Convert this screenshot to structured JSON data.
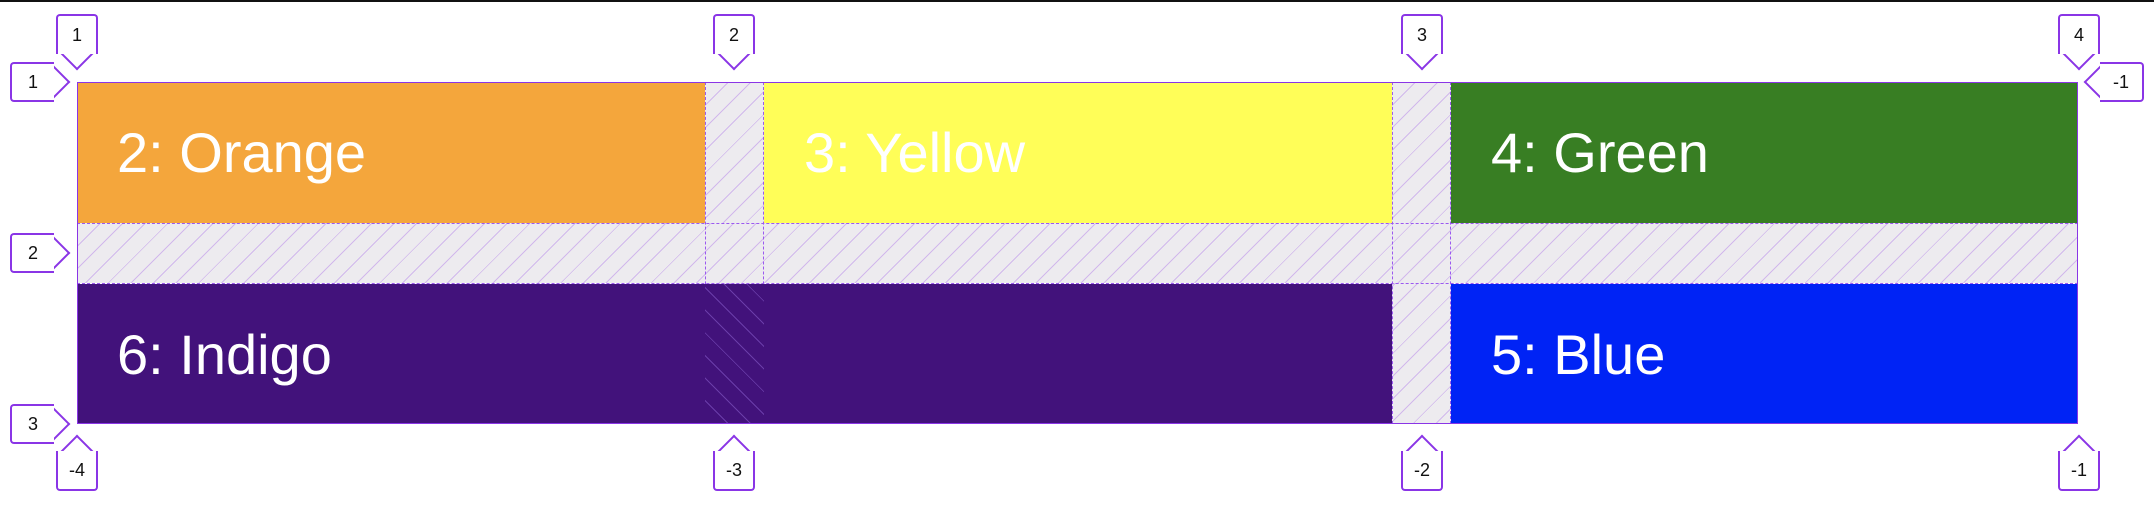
{
  "cells": {
    "orange": {
      "label": "2: Orange",
      "color": "#f4a63c"
    },
    "yellow": {
      "label": "3: Yellow",
      "color": "#fffe58"
    },
    "green": {
      "label": "4: Green",
      "color": "#387e23"
    },
    "indigo": {
      "label": "6: Indigo",
      "color": "#42127b"
    },
    "blue": {
      "label": "5: Blue",
      "color": "#0023f5"
    }
  },
  "column_lines_top": [
    "1",
    "2",
    "3",
    "4"
  ],
  "column_lines_bottom": [
    "-4",
    "-3",
    "-2",
    "-1"
  ],
  "row_lines_left": [
    "1",
    "2",
    "3"
  ],
  "row_lines_right": [
    "-1"
  ],
  "colors": {
    "grid_outline": "#8a35e6",
    "gap_fill": "#edebef"
  }
}
